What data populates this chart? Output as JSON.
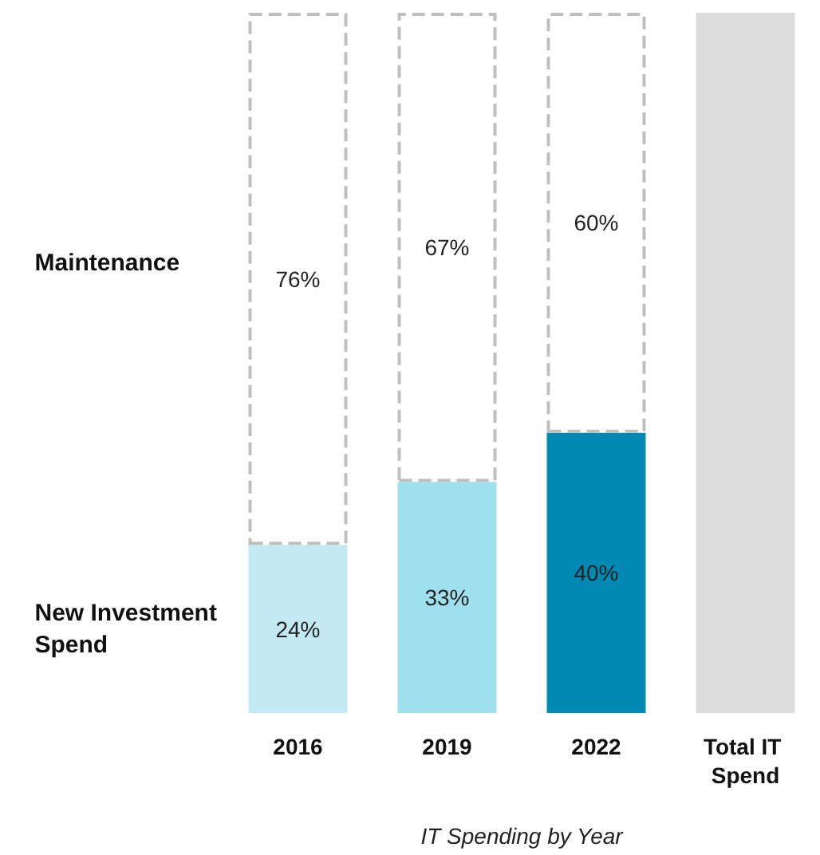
{
  "chart_data": {
    "type": "bar",
    "stacked": true,
    "xlabel": "IT Spending by Year",
    "categories": [
      "2016",
      "2019",
      "2022",
      "Total IT Spend"
    ],
    "series": [
      {
        "name": "New Investment Spend",
        "colors": [
          "#c3eaf3",
          "#9fe0ee",
          "#0089b3",
          null
        ],
        "values": [
          24,
          33,
          40,
          null
        ],
        "value_labels": [
          "24%",
          "33%",
          "40%",
          null
        ]
      },
      {
        "name": "Maintenance",
        "color": "#bfbfbf",
        "line_style": "dashed",
        "values": [
          76,
          67,
          60,
          null
        ],
        "value_labels": [
          "76%",
          "67%",
          "60%",
          null
        ]
      },
      {
        "color": "#dcdcdc",
        "values": [
          null,
          null,
          null,
          100
        ]
      }
    ],
    "ylim": [
      0,
      100
    ],
    "tick_labels": "x",
    "grid": false,
    "legend": false
  }
}
